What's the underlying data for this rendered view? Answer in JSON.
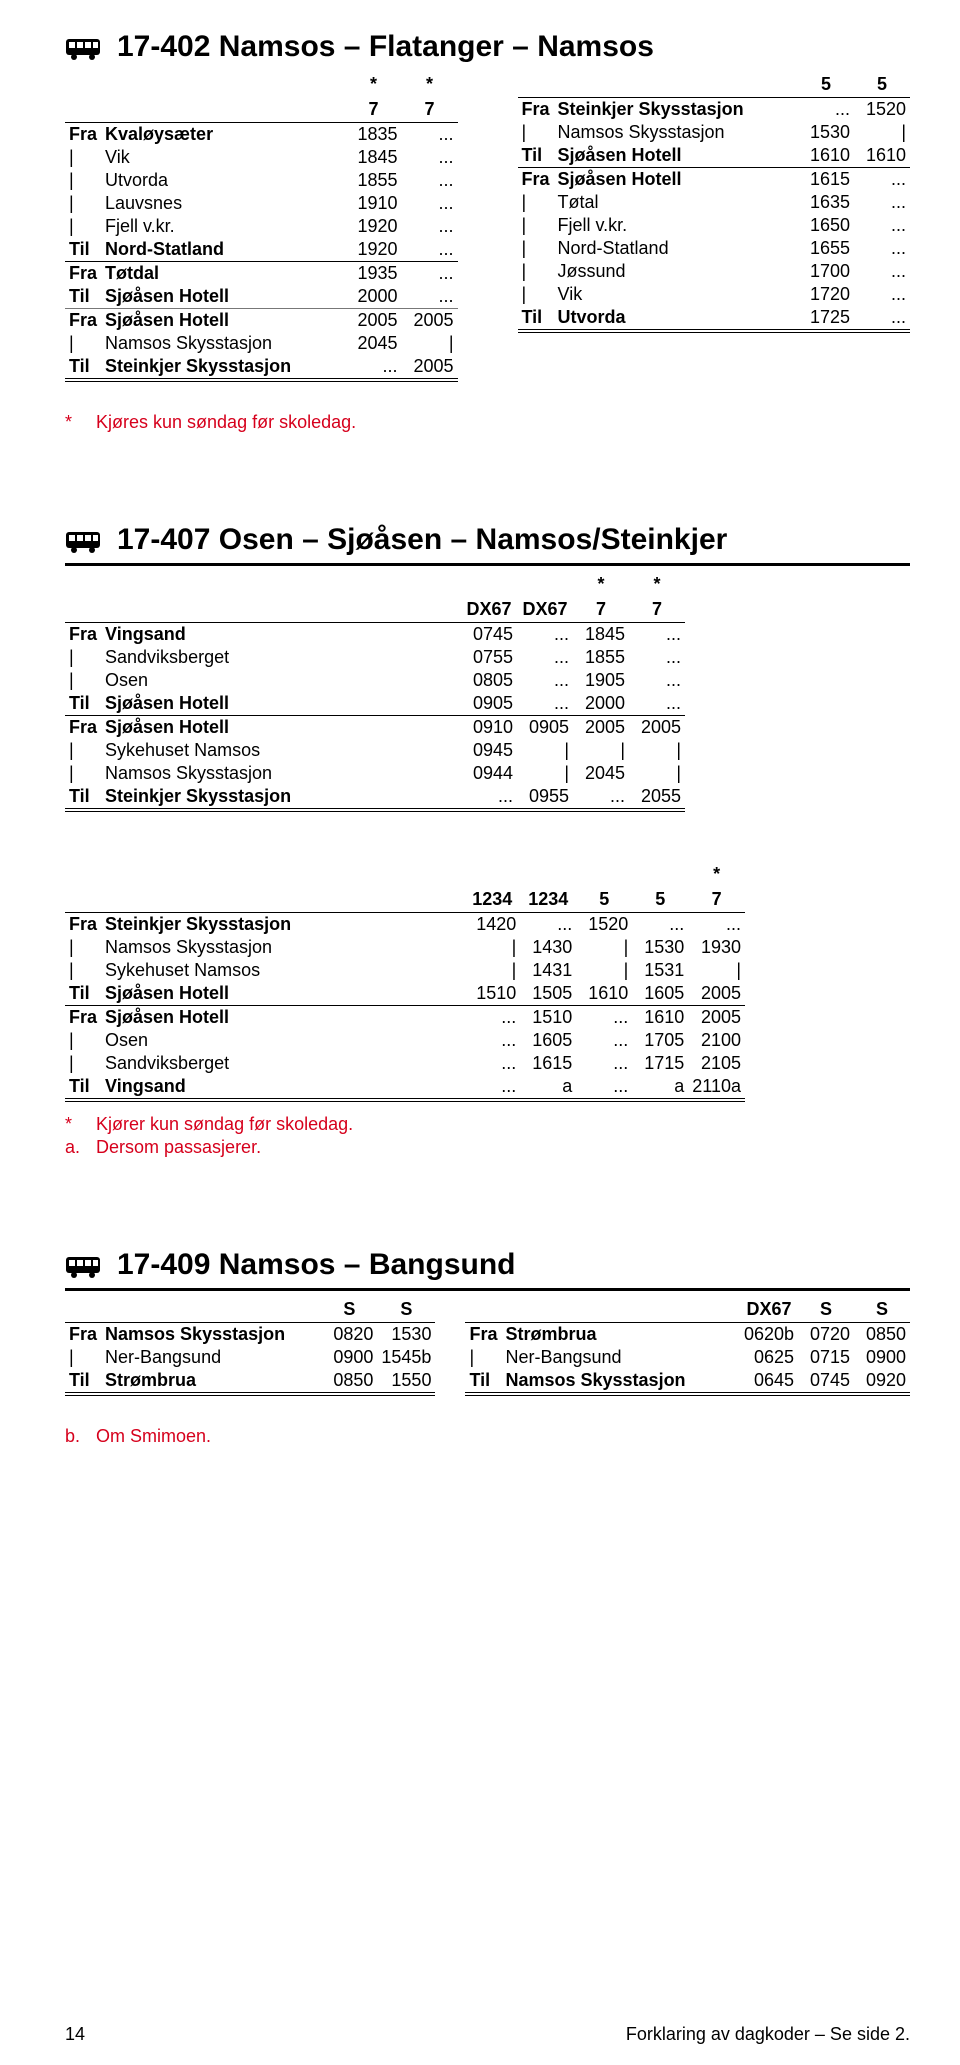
{
  "route_402": {
    "title": "17-402 Namsos – Flatanger – Namsos",
    "left": {
      "headers": [
        "*",
        "*"
      ],
      "sub_headers": [
        "7",
        "7"
      ],
      "rows": [
        {
          "pfx": "Fra",
          "stop": "Kvaløysæter",
          "t": [
            "1835",
            "..."
          ]
        },
        {
          "pfx": "|",
          "stop": "Vik",
          "t": [
            "1845",
            "..."
          ]
        },
        {
          "pfx": "|",
          "stop": "Utvorda",
          "t": [
            "1855",
            "..."
          ]
        },
        {
          "pfx": "|",
          "stop": "Lauvsnes",
          "t": [
            "1910",
            "..."
          ]
        },
        {
          "pfx": "|",
          "stop": "Fjell v.kr.",
          "t": [
            "1920",
            "..."
          ]
        },
        {
          "pfx": "Til",
          "stop": "Nord-Statland",
          "t": [
            "1920",
            "..."
          ]
        },
        {
          "pfx": "Fra",
          "stop": "Tøtdal",
          "t": [
            "1935",
            "..."
          ],
          "rule": "thin"
        },
        {
          "pfx": "Til",
          "stop": "Sjøåsen Hotell",
          "t": [
            "2000",
            "..."
          ]
        },
        {
          "pfx": "Fra",
          "stop": "Sjøåsen Hotell",
          "t": [
            "2005",
            "2005"
          ],
          "rule": "mid"
        },
        {
          "pfx": "|",
          "stop": "Namsos Skysstasjon",
          "t": [
            "2045",
            "|"
          ]
        },
        {
          "pfx": "Til",
          "stop": "Steinkjer Skysstasjon",
          "t": [
            "...",
            "2005"
          ]
        }
      ]
    },
    "right": {
      "headers": [
        "5",
        "5"
      ],
      "rows": [
        {
          "pfx": "Fra",
          "stop": "Steinkjer Skysstasjon",
          "t": [
            "...",
            "1520"
          ]
        },
        {
          "pfx": "|",
          "stop": "Namsos Skysstasjon",
          "t": [
            "1530",
            "|"
          ]
        },
        {
          "pfx": "Til",
          "stop": "Sjøåsen Hotell",
          "t": [
            "1610",
            "1610"
          ]
        },
        {
          "pfx": "Fra",
          "stop": "Sjøåsen Hotell",
          "t": [
            "1615",
            "..."
          ],
          "rule": "thin"
        },
        {
          "pfx": "|",
          "stop": "Tøtal",
          "t": [
            "1635",
            "..."
          ]
        },
        {
          "pfx": "|",
          "stop": "Fjell v.kr.",
          "t": [
            "1650",
            "..."
          ]
        },
        {
          "pfx": "|",
          "stop": "Nord-Statland",
          "t": [
            "1655",
            "..."
          ]
        },
        {
          "pfx": "|",
          "stop": "Jøssund",
          "t": [
            "1700",
            "..."
          ]
        },
        {
          "pfx": "|",
          "stop": "Vik",
          "t": [
            "1720",
            "..."
          ]
        },
        {
          "pfx": "Til",
          "stop": "Utvorda",
          "t": [
            "1725",
            "..."
          ]
        }
      ]
    },
    "note": "Kjøres kun søndag før skoledag.",
    "note_prefix": "*"
  },
  "route_407": {
    "title": "17-407 Osen – Sjøåsen – Namsos/Steinkjer",
    "top": {
      "star_headers": [
        "",
        "",
        "*",
        "*"
      ],
      "headers": [
        "DX67",
        "DX67",
        "7",
        "7"
      ],
      "rows": [
        {
          "pfx": "Fra",
          "stop": "Vingsand",
          "t": [
            "0745",
            "...",
            "1845",
            "..."
          ]
        },
        {
          "pfx": "|",
          "stop": "Sandviksberget",
          "t": [
            "0755",
            "...",
            "1855",
            "..."
          ]
        },
        {
          "pfx": "|",
          "stop": "Osen",
          "t": [
            "0805",
            "...",
            "1905",
            "..."
          ]
        },
        {
          "pfx": "Til",
          "stop": "Sjøåsen Hotell",
          "t": [
            "0905",
            "...",
            "2000",
            "..."
          ]
        },
        {
          "pfx": "Fra",
          "stop": "Sjøåsen Hotell",
          "t": [
            "0910",
            "0905",
            "2005",
            "2005"
          ],
          "rule": "thin"
        },
        {
          "pfx": "|",
          "stop": "Sykehuset Namsos",
          "t": [
            "0945",
            "|",
            "|",
            "|"
          ]
        },
        {
          "pfx": "|",
          "stop": "Namsos Skysstasjon",
          "t": [
            "0944",
            "|",
            "2045",
            "|"
          ]
        },
        {
          "pfx": "Til",
          "stop": "Steinkjer Skysstasjon",
          "t": [
            "...",
            "0955",
            "...",
            "2055"
          ]
        }
      ]
    },
    "bottom": {
      "star_headers": [
        "",
        "",
        "",
        "",
        "*"
      ],
      "headers": [
        "1234",
        "1234",
        "5",
        "5",
        "7"
      ],
      "rows": [
        {
          "pfx": "Fra",
          "stop": "Steinkjer Skysstasjon",
          "t": [
            "1420",
            "...",
            "1520",
            "...",
            "..."
          ]
        },
        {
          "pfx": "|",
          "stop": "Namsos Skysstasjon",
          "t": [
            "|",
            "1430",
            "|",
            "1530",
            "1930"
          ]
        },
        {
          "pfx": "|",
          "stop": "Sykehuset Namsos",
          "t": [
            "|",
            "1431",
            "|",
            "1531",
            "|"
          ]
        },
        {
          "pfx": "Til",
          "stop": "Sjøåsen Hotell",
          "t": [
            "1510",
            "1505",
            "1610",
            "1605",
            "2005"
          ]
        },
        {
          "pfx": "Fra",
          "stop": "Sjøåsen Hotell",
          "t": [
            "...",
            "1510",
            "...",
            "1610",
            "2005"
          ],
          "rule": "thin"
        },
        {
          "pfx": "|",
          "stop": "Osen",
          "t": [
            "...",
            "1605",
            "...",
            "1705",
            "2100"
          ]
        },
        {
          "pfx": "|",
          "stop": "Sandviksberget",
          "t": [
            "...",
            "1615",
            "...",
            "1715",
            "2105"
          ]
        },
        {
          "pfx": "Til",
          "stop": "Vingsand",
          "t": [
            "...",
            "a",
            "...",
            "a",
            "2110a"
          ]
        }
      ]
    },
    "notes": [
      {
        "pfx": "*",
        "text": "Kjører kun søndag før skoledag."
      },
      {
        "pfx": "a.",
        "text": "Dersom passasjerer."
      }
    ]
  },
  "route_409": {
    "title": "17-409 Namsos – Bangsund",
    "left": {
      "headers": [
        "S",
        "S"
      ],
      "rows": [
        {
          "pfx": "Fra",
          "stop": "Namsos Skysstasjon",
          "t": [
            "0820",
            "1530"
          ]
        },
        {
          "pfx": "|",
          "stop": "Ner-Bangsund",
          "t": [
            "0900",
            "1545b"
          ]
        },
        {
          "pfx": "Til",
          "stop": "Strømbrua",
          "t": [
            "0850",
            "1550"
          ]
        }
      ]
    },
    "right": {
      "headers": [
        "DX67",
        "S",
        "S"
      ],
      "rows": [
        {
          "pfx": "Fra",
          "stop": "Strømbrua",
          "t": [
            "0620b",
            "0720",
            "0850"
          ]
        },
        {
          "pfx": "|",
          "stop": "Ner-Bangsund",
          "t": [
            "0625",
            "0715",
            "0900"
          ]
        },
        {
          "pfx": "Til",
          "stop": "Namsos Skysstasjon",
          "t": [
            "0645",
            "0745",
            "0920"
          ]
        }
      ]
    },
    "notes": [
      {
        "pfx": "b.",
        "text": "Om Smimoen."
      }
    ]
  },
  "footer": {
    "page": "14",
    "right": "Forklaring av dagkoder – Se side 2."
  }
}
